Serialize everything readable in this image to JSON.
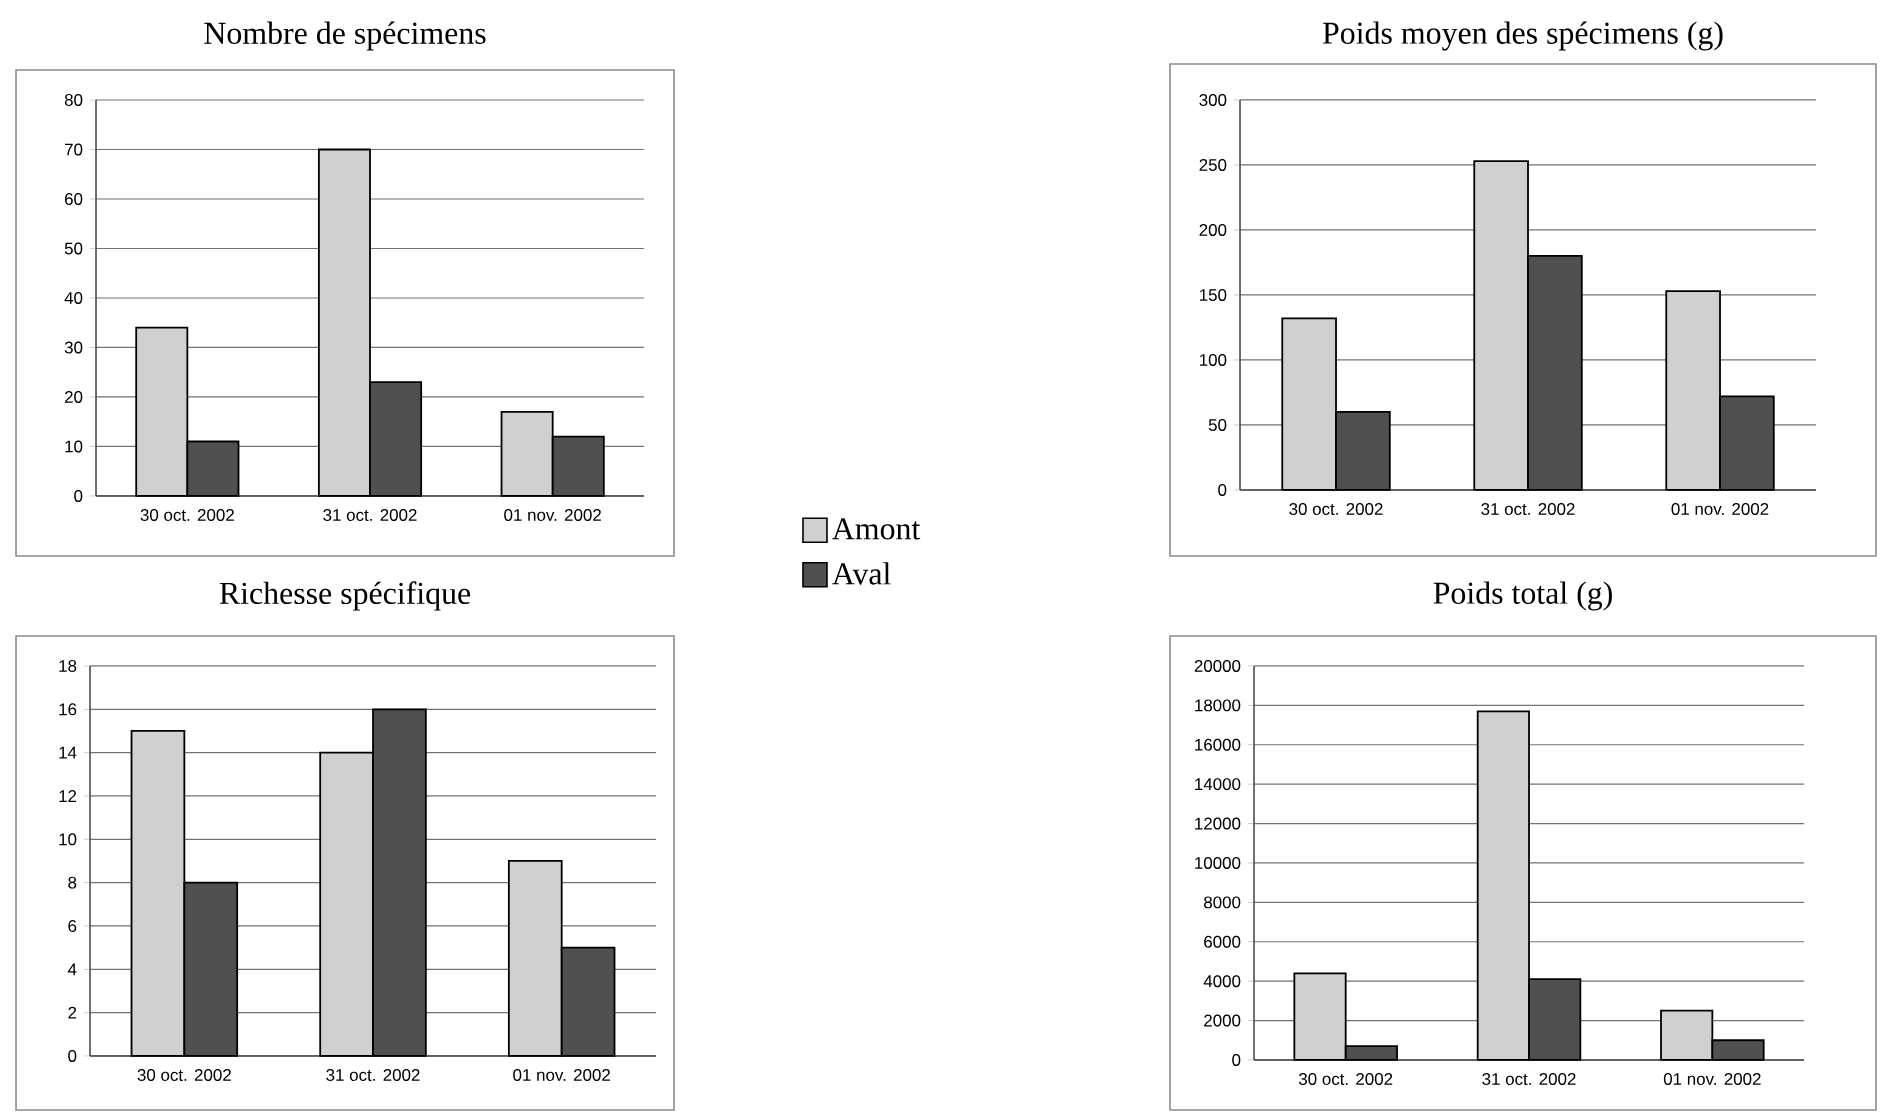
{
  "chart_data": [
    {
      "type": "bar",
      "title": "Nombre de spécimens",
      "categories": [
        "30 oct. 2002",
        "31 oct. 2002",
        "01 nov. 2002"
      ],
      "ylim": [
        0,
        80
      ],
      "yticks": [
        0,
        10,
        20,
        30,
        40,
        50,
        60,
        70,
        80
      ],
      "grid": "y",
      "legend": "right",
      "series": [
        {
          "name": "Amont",
          "color": "#d0d0d0",
          "values": [
            34,
            70,
            17
          ]
        },
        {
          "name": "Aval",
          "color": "#505050",
          "values": [
            11,
            23,
            12
          ]
        }
      ]
    },
    {
      "type": "bar",
      "title": "Poids moyen des spécimens (g)",
      "categories": [
        "30 oct. 2002",
        "31 oct. 2002",
        "01 nov. 2002"
      ],
      "ylim": [
        0,
        300
      ],
      "yticks": [
        0,
        50,
        100,
        150,
        200,
        250,
        300
      ],
      "grid": "y",
      "series": [
        {
          "color": "#d0d0d0",
          "values": [
            132,
            253,
            153
          ]
        },
        {
          "color": "#505050",
          "values": [
            60,
            180,
            72
          ]
        }
      ]
    },
    {
      "type": "bar",
      "title": "Richesse spécifique",
      "categories": [
        "30 oct. 2002",
        "31 oct. 2002",
        "01 nov. 2002"
      ],
      "ylim": [
        0,
        18
      ],
      "yticks": [
        0,
        2,
        4,
        6,
        8,
        10,
        12,
        14,
        16,
        18
      ],
      "grid": "y",
      "series": [
        {
          "color": "#d0d0d0",
          "values": [
            15,
            14,
            9
          ]
        },
        {
          "color": "#505050",
          "values": [
            8,
            16,
            5
          ]
        }
      ]
    },
    {
      "type": "bar",
      "title": "Poids total (g)",
      "categories": [
        "30 oct. 2002",
        "31 oct. 2002",
        "01 nov. 2002"
      ],
      "ylim": [
        0,
        20000
      ],
      "yticks": [
        0,
        2000,
        4000,
        6000,
        8000,
        10000,
        12000,
        14000,
        16000,
        18000,
        20000
      ],
      "grid": "y",
      "series": [
        {
          "color": "#d0d0d0",
          "values": [
            4400,
            17700,
            2500
          ]
        },
        {
          "color": "#505050",
          "values": [
            700,
            4100,
            1000
          ]
        }
      ]
    }
  ]
}
